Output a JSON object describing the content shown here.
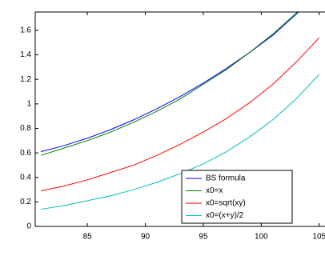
{
  "chart_data": {
    "type": "line",
    "x": [
      81,
      83,
      85,
      87,
      89,
      91,
      93,
      95,
      97,
      99,
      101,
      103,
      105
    ],
    "series": [
      {
        "name": "BS formula",
        "color": "#0000ff",
        "values": [
          0.61,
          0.66,
          0.72,
          0.79,
          0.87,
          0.96,
          1.06,
          1.17,
          1.29,
          1.42,
          1.56,
          1.73,
          1.91
        ]
      },
      {
        "name": "x0=x",
        "color": "#008000",
        "values": [
          0.58,
          0.64,
          0.7,
          0.77,
          0.85,
          0.94,
          1.04,
          1.16,
          1.28,
          1.42,
          1.57,
          1.74,
          1.93
        ]
      },
      {
        "name": "x0=sqrt(xy)",
        "color": "#ff0000",
        "values": [
          0.29,
          0.33,
          0.38,
          0.44,
          0.5,
          0.58,
          0.67,
          0.77,
          0.88,
          1.01,
          1.16,
          1.34,
          1.54
        ]
      },
      {
        "name": "x0=(x+y)/2",
        "color": "#00bfbf",
        "values": [
          0.14,
          0.17,
          0.21,
          0.25,
          0.3,
          0.36,
          0.43,
          0.51,
          0.61,
          0.73,
          0.87,
          1.04,
          1.24
        ]
      }
    ],
    "xlim": [
      80.5,
      105.5
    ],
    "xticks": [
      85,
      90,
      95,
      100,
      105
    ],
    "ylim": [
      0,
      1.75
    ],
    "yticks": [
      0,
      0.2,
      0.4,
      0.6,
      0.8,
      1,
      1.2,
      1.4,
      1.6
    ],
    "legend": "lower-right"
  }
}
